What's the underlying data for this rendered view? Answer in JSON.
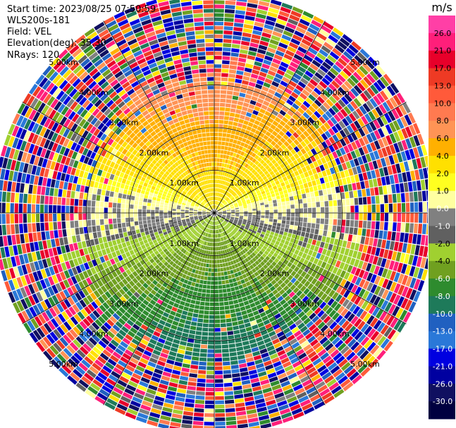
{
  "header": {
    "start_time": "Start time: 2023/08/25 07:50:59",
    "instrument": "WLS200s-181",
    "field": "Field: VEL",
    "elevation": "Elevation(deg): 35.30",
    "nrays": "NRays: 120"
  },
  "colorbar": {
    "unit": "m/s",
    "ticks": [
      "26.0",
      "21.0",
      "17.0",
      "13.0",
      "10.0",
      "8.0",
      "6.0",
      "4.0",
      "2.0",
      "1.0",
      "0.0",
      "-1.0",
      "-2.0",
      "-4.0",
      "-6.0",
      "-8.0",
      "-10.0",
      "-13.0",
      "-17.0",
      "-21.0",
      "-26.0",
      "-30.0"
    ],
    "colors": [
      "#ff3fa6",
      "#ff1f7a",
      "#e8002a",
      "#ee3a24",
      "#ff5a3a",
      "#ff7a50",
      "#ff9455",
      "#ffb000",
      "#ffe000",
      "#ffff20",
      "#ffffa0",
      "#808080",
      "#606060",
      "#a0d030",
      "#70a020",
      "#2e8b2e",
      "#1e7a5a",
      "#2060c0",
      "#2a78d8",
      "#0000e0",
      "#0000a0",
      "#101060",
      "#000040"
    ]
  },
  "chart_data": {
    "type": "heatmap",
    "title": "",
    "field": "VEL",
    "unit": "m/s",
    "projection": "polar (PPI)",
    "nrays": 120,
    "elevation_deg": 35.3,
    "range_rings_km": [
      "1.00km",
      "2.00km",
      "3.00km",
      "4.00km",
      "5.00km"
    ],
    "max_range_km": 5.2,
    "colorbar_range": [
      -30.0,
      26.0
    ],
    "velocity_pattern": "positive (2 to 8 m/s) toward north, negative (-4 to -10 m/s) toward south, near 0 along east-west; noise beyond ~3 km"
  }
}
